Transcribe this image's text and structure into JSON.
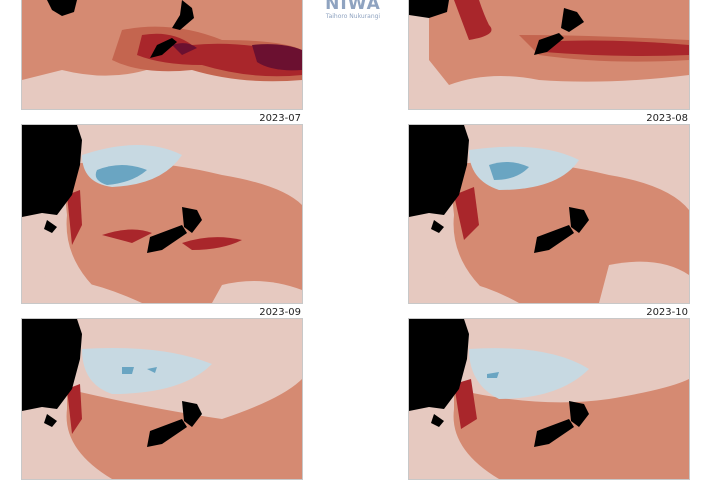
{
  "panels": [
    {
      "id": "p1",
      "date": ""
    },
    {
      "id": "p2",
      "date": ""
    },
    {
      "id": "p3",
      "date": "2023-07"
    },
    {
      "id": "p4",
      "date": "2023-08"
    },
    {
      "id": "p5",
      "date": "2023-09"
    },
    {
      "id": "p6",
      "date": "2023-10"
    }
  ],
  "logo": {
    "word": "NIWA",
    "tagline": "Taihoro Nukurangi"
  },
  "colors": {
    "background_light": "#e6c9c0",
    "anomaly_low_pos": "#d58a72",
    "anomaly_mid_pos": "#c4654f",
    "anomaly_high_pos": "#a9262b",
    "anomaly_extreme_pos": "#6b1030",
    "anomaly_neg_light": "#c7d9e2",
    "anomaly_neg_mid": "#6aa5c2",
    "land": "#000000"
  }
}
